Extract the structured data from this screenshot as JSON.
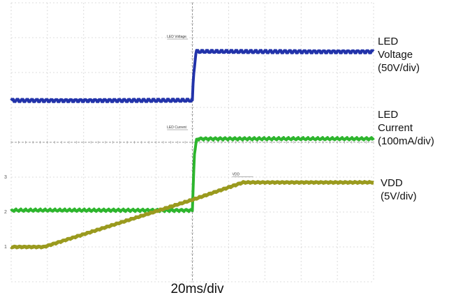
{
  "chart_data": {
    "type": "line",
    "title": "",
    "xlabel": "20ms/div",
    "ylabel": "",
    "grid": true,
    "xlim": [
      0,
      10
    ],
    "ylim": [
      0,
      8
    ],
    "x_unit": "div",
    "y_unit": "div",
    "series": [
      {
        "name": "LED Voltage",
        "scale": "(50V/div)",
        "color": "#2233aa",
        "noise": 0.05,
        "x": [
          0,
          5.0,
          5.03,
          5.1,
          10
        ],
        "y": [
          5.2,
          5.2,
          5.9,
          6.6,
          6.6
        ]
      },
      {
        "name": "LED Current",
        "scale": "(100mA/div)",
        "color": "#2db52d",
        "noise": 0.04,
        "x": [
          0,
          5.0,
          5.05,
          5.12,
          10
        ],
        "y": [
          2.05,
          2.05,
          3.6,
          4.1,
          4.1
        ]
      },
      {
        "name": "VDD",
        "scale": "(5V/div)",
        "color": "#9a9a1e",
        "noise": 0.02,
        "x": [
          0,
          0.9,
          5.0,
          6.4,
          10
        ],
        "y": [
          1.0,
          1.0,
          2.35,
          2.85,
          2.85
        ]
      }
    ],
    "legend_labels": [
      {
        "lines": [
          "LED",
          "Voltage",
          "(50V/div)"
        ]
      },
      {
        "lines": [
          "LED",
          "Current",
          "(100mA/div)"
        ]
      },
      {
        "lines": [
          "VDD",
          "(5V/div)"
        ]
      }
    ],
    "annotations": [
      {
        "text": "LED Voltage",
        "x": 4.3,
        "y": 7.0
      },
      {
        "text": "LED Current",
        "x": 4.3,
        "y": 4.4
      },
      {
        "text": "VDD",
        "x": 6.1,
        "y": 3.05
      }
    ],
    "ground_markers": [
      "1",
      "2",
      "3"
    ]
  }
}
